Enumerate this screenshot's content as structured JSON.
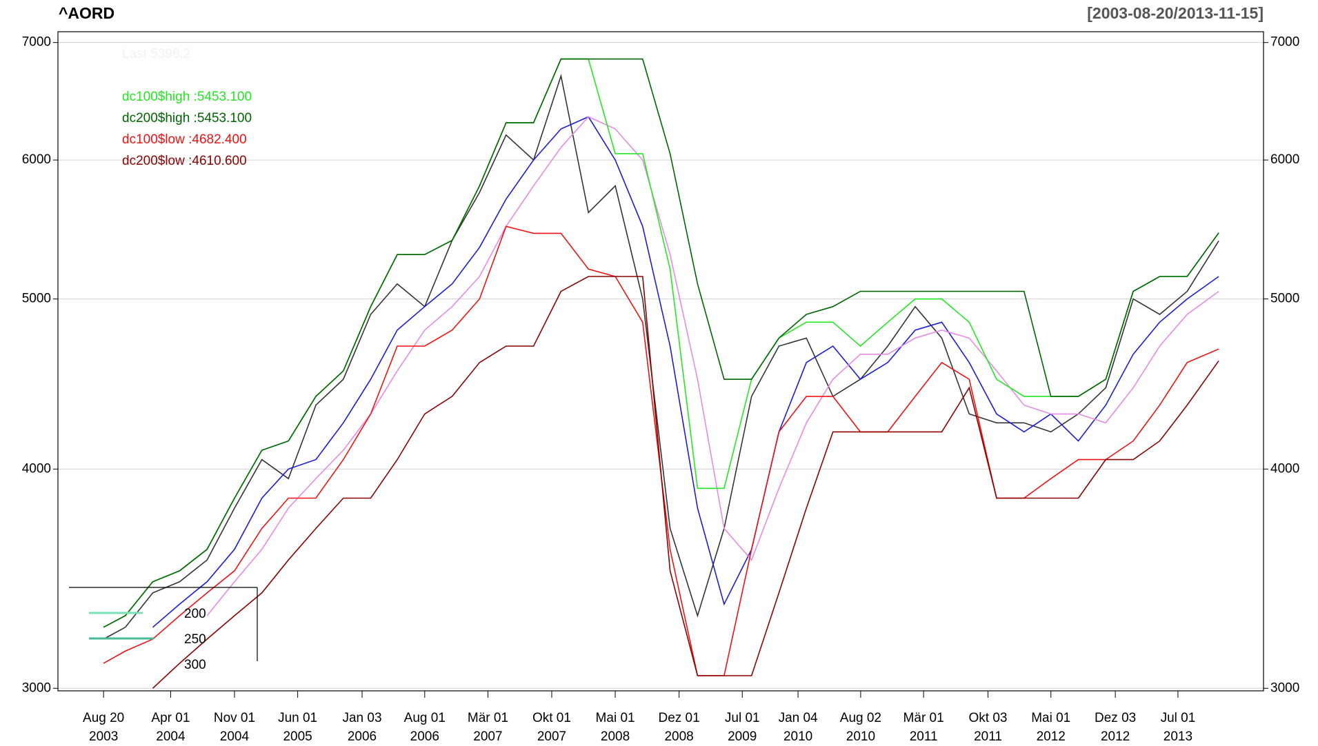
{
  "chart_data": {
    "type": "line",
    "title": "^AORD",
    "subtitle": "[2003-08-20/2013-11-15]",
    "log_scale": true,
    "grid": true,
    "legend_position": "top-left",
    "annotations": {
      "last": "Last 5396.2",
      "last_color": "#f2f2f2"
    },
    "box_legend": [
      "200",
      "250",
      "300"
    ],
    "x": [
      "2003-08-20",
      "2003-11-01",
      "2004-02-01",
      "2004-05-01",
      "2004-08-01",
      "2004-11-01",
      "2005-02-01",
      "2005-05-01",
      "2005-08-01",
      "2005-11-01",
      "2006-02-01",
      "2006-05-01",
      "2006-08-01",
      "2006-11-01",
      "2007-02-01",
      "2007-05-01",
      "2007-08-01",
      "2007-11-01",
      "2008-02-01",
      "2008-05-01",
      "2008-08-01",
      "2008-11-01",
      "2009-02-01",
      "2009-05-01",
      "2009-08-01",
      "2009-11-01",
      "2010-02-01",
      "2010-05-01",
      "2010-08-01",
      "2010-11-01",
      "2011-02-01",
      "2011-05-01",
      "2011-08-01",
      "2011-11-01",
      "2012-02-01",
      "2012-05-01",
      "2012-08-01",
      "2012-11-01",
      "2013-02-01",
      "2013-05-01",
      "2013-08-01",
      "2013-11-15"
    ],
    "xlim": [
      "2003-03-20",
      "2014-04-14"
    ],
    "xticks": [
      {
        "value": "2003-08-20",
        "label": [
          "Aug 20",
          "2003"
        ]
      },
      {
        "value": "2004-04-01",
        "label": [
          "Apr 01",
          "2004"
        ]
      },
      {
        "value": "2004-11-01",
        "label": [
          "Nov 01",
          "2004"
        ]
      },
      {
        "value": "2005-06-01",
        "label": [
          "Jun 01",
          "2005"
        ]
      },
      {
        "value": "2006-01-03",
        "label": [
          "Jan 03",
          "2006"
        ]
      },
      {
        "value": "2006-08-01",
        "label": [
          "Aug 01",
          "2006"
        ]
      },
      {
        "value": "2007-03-01",
        "label": [
          "Mär 01",
          "2007"
        ]
      },
      {
        "value": "2007-10-01",
        "label": [
          "Okt 01",
          "2007"
        ]
      },
      {
        "value": "2008-05-01",
        "label": [
          "Mai 01",
          "2008"
        ]
      },
      {
        "value": "2008-12-01",
        "label": [
          "Dez 01",
          "2008"
        ]
      },
      {
        "value": "2009-07-01",
        "label": [
          "Jul 01",
          "2009"
        ]
      },
      {
        "value": "2010-01-04",
        "label": [
          "Jan 04",
          "2010"
        ]
      },
      {
        "value": "2010-08-02",
        "label": [
          "Aug 02",
          "2010"
        ]
      },
      {
        "value": "2011-03-01",
        "label": [
          "Mär 01",
          "2011"
        ]
      },
      {
        "value": "2011-10-03",
        "label": [
          "Okt 03",
          "2011"
        ]
      },
      {
        "value": "2012-05-01",
        "label": [
          "Mai 01",
          "2012"
        ]
      },
      {
        "value": "2012-12-03",
        "label": [
          "Dez 03",
          "2012"
        ]
      },
      {
        "value": "2013-07-01",
        "label": [
          "Jul 01",
          "2013"
        ]
      }
    ],
    "ylim": [
      2990,
      7100
    ],
    "yticks": [
      3000,
      4000,
      5000,
      6000,
      7000
    ],
    "series": [
      {
        "color": "#333333",
        "values": [
          3200,
          3250,
          3400,
          3450,
          3550,
          3800,
          4050,
          3950,
          4350,
          4500,
          4900,
          5100,
          4950,
          5400,
          5750,
          6200,
          6000,
          6700,
          5600,
          5800,
          5000,
          3700,
          3300,
          3700,
          4400,
          4700,
          4750,
          4400,
          4500,
          4700,
          4950,
          4750,
          4300,
          4250,
          4250,
          4200,
          4300,
          4450,
          5000,
          4900,
          5050,
          5396.2
        ]
      },
      {
        "color": "#1a1adb",
        "values": [
          null,
          null,
          3250,
          3350,
          3450,
          3600,
          3850,
          4000,
          4050,
          4250,
          4500,
          4800,
          4950,
          5100,
          5350,
          5700,
          6000,
          6250,
          6350,
          6000,
          5500,
          4700,
          3800,
          3350,
          3600,
          4200,
          4600,
          4700,
          4500,
          4600,
          4800,
          4850,
          4600,
          4300,
          4200,
          4300,
          4150,
          4350,
          4650,
          4850,
          5000,
          5150
        ]
      },
      {
        "color": "#e58be5",
        "values": [
          null,
          null,
          null,
          null,
          3300,
          3450,
          3600,
          3800,
          3950,
          4100,
          4300,
          4550,
          4800,
          4950,
          5150,
          5500,
          5800,
          6100,
          6350,
          6250,
          6000,
          5300,
          4500,
          3700,
          3550,
          3900,
          4250,
          4500,
          4650,
          4650,
          4750,
          4800,
          4750,
          4550,
          4350,
          4300,
          4300,
          4250,
          4450,
          4700,
          4900,
          5050
        ]
      },
      {
        "name": "dc100$high :5453.100",
        "color": "#22e822",
        "values": [
          3250,
          3300,
          3450,
          3500,
          3600,
          3850,
          4100,
          4150,
          4400,
          4550,
          4950,
          5300,
          5300,
          5400,
          5800,
          6300,
          6300,
          6850,
          6850,
          6050,
          6050,
          5200,
          3900,
          3900,
          4500,
          4750,
          4850,
          4850,
          4700,
          4850,
          5000,
          5000,
          4850,
          4500,
          4400,
          4400,
          4400,
          4500,
          5050,
          5150,
          5150,
          5453.1
        ]
      },
      {
        "name": "dc200$high :5453.100",
        "color": "#006400",
        "values": [
          3250,
          3300,
          3450,
          3500,
          3600,
          3850,
          4100,
          4150,
          4400,
          4550,
          4950,
          5300,
          5300,
          5400,
          5800,
          6300,
          6300,
          6850,
          6850,
          6850,
          6850,
          6050,
          5100,
          4500,
          4500,
          4750,
          4900,
          4950,
          5050,
          5050,
          5050,
          5050,
          5050,
          5050,
          5050,
          4400,
          4400,
          4500,
          5050,
          5150,
          5150,
          5453.1
        ]
      },
      {
        "name": "dc100$low :4682.400",
        "color": "#ee1111",
        "values": [
          3100,
          3150,
          3200,
          3300,
          3400,
          3500,
          3700,
          3850,
          3850,
          4050,
          4300,
          4700,
          4700,
          4800,
          5000,
          5500,
          5450,
          5450,
          5200,
          5150,
          4850,
          3600,
          3050,
          3050,
          3600,
          4200,
          4400,
          4400,
          4200,
          4200,
          4400,
          4600,
          4500,
          3850,
          3850,
          3950,
          4050,
          4050,
          4150,
          4350,
          4600,
          4682.4
        ]
      },
      {
        "name": "dc200$low :4610.600",
        "color": "#8b0000",
        "values": [
          null,
          null,
          3000,
          3100,
          3200,
          3300,
          3400,
          3550,
          3700,
          3850,
          3850,
          4050,
          4300,
          4400,
          4600,
          4700,
          4700,
          5050,
          5150,
          5150,
          5150,
          3500,
          3050,
          3050,
          3050,
          3400,
          3800,
          4200,
          4200,
          4200,
          4200,
          4200,
          4450,
          3850,
          3850,
          3850,
          3850,
          4050,
          4050,
          4150,
          4350,
          4610.6
        ]
      }
    ]
  }
}
